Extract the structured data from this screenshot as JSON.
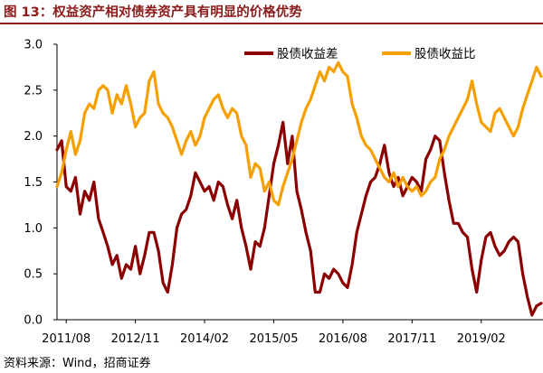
{
  "figure": {
    "title": "图 13：权益资产相对债券资产具有明显的价格优势",
    "source": "资料来源：Wind，招商证券"
  },
  "chart_data": {
    "type": "line",
    "title": "",
    "xlabel": "",
    "ylabel": "",
    "ylim": [
      0.0,
      3.0
    ],
    "yticks": [
      "0.0",
      "0.5",
      "1.0",
      "1.5",
      "2.0",
      "2.5",
      "3.0"
    ],
    "xlim": [
      "2011/06",
      "2020/03"
    ],
    "xticks": [
      "2011/08",
      "2012/11",
      "2014/02",
      "2015/05",
      "2016/08",
      "2017/11",
      "2019/02"
    ],
    "grid": false,
    "legend_position": "top",
    "series": [
      {
        "name": "股债收益差",
        "color": "#8B0000",
        "points": [
          [
            "2011/06",
            1.85
          ],
          [
            "2011/07",
            1.95
          ],
          [
            "2011/08",
            1.45
          ],
          [
            "2011/09",
            1.4
          ],
          [
            "2011/10",
            1.55
          ],
          [
            "2011/11",
            1.15
          ],
          [
            "2011/12",
            1.4
          ],
          [
            "2012/01",
            1.3
          ],
          [
            "2012/02",
            1.5
          ],
          [
            "2012/03",
            1.1
          ],
          [
            "2012/04",
            0.95
          ],
          [
            "2012/05",
            0.8
          ],
          [
            "2012/06",
            0.6
          ],
          [
            "2012/07",
            0.7
          ],
          [
            "2012/08",
            0.45
          ],
          [
            "2012/09",
            0.6
          ],
          [
            "2012/10",
            0.55
          ],
          [
            "2012/11",
            0.8
          ],
          [
            "2012/12",
            0.5
          ],
          [
            "2013/01",
            0.7
          ],
          [
            "2013/02",
            0.95
          ],
          [
            "2013/03",
            0.95
          ],
          [
            "2013/04",
            0.75
          ],
          [
            "2013/05",
            0.4
          ],
          [
            "2013/06",
            0.3
          ],
          [
            "2013/07",
            0.6
          ],
          [
            "2013/08",
            1.0
          ],
          [
            "2013/09",
            1.15
          ],
          [
            "2013/10",
            1.2
          ],
          [
            "2013/11",
            1.35
          ],
          [
            "2013/12",
            1.6
          ],
          [
            "2014/01",
            1.5
          ],
          [
            "2014/02",
            1.4
          ],
          [
            "2014/03",
            1.45
          ],
          [
            "2014/04",
            1.3
          ],
          [
            "2014/05",
            1.5
          ],
          [
            "2014/06",
            1.45
          ],
          [
            "2014/07",
            1.25
          ],
          [
            "2014/08",
            1.1
          ],
          [
            "2014/09",
            1.3
          ],
          [
            "2014/10",
            1.0
          ],
          [
            "2014/11",
            0.8
          ],
          [
            "2014/12",
            0.55
          ],
          [
            "2015/01",
            0.85
          ],
          [
            "2015/02",
            0.8
          ],
          [
            "2015/03",
            1.0
          ],
          [
            "2015/04",
            1.35
          ],
          [
            "2015/05",
            1.7
          ],
          [
            "2015/06",
            1.9
          ],
          [
            "2015/07",
            2.15
          ],
          [
            "2015/08",
            1.7
          ],
          [
            "2015/09",
            2.0
          ],
          [
            "2015/10",
            1.4
          ],
          [
            "2015/11",
            1.2
          ],
          [
            "2015/12",
            0.95
          ],
          [
            "2016/01",
            0.75
          ],
          [
            "2016/02",
            0.3
          ],
          [
            "2016/03",
            0.3
          ],
          [
            "2016/04",
            0.5
          ],
          [
            "2016/05",
            0.45
          ],
          [
            "2016/06",
            0.55
          ],
          [
            "2016/07",
            0.5
          ],
          [
            "2016/08",
            0.4
          ],
          [
            "2016/09",
            0.35
          ],
          [
            "2016/10",
            0.6
          ],
          [
            "2016/11",
            0.95
          ],
          [
            "2016/12",
            1.15
          ],
          [
            "2017/01",
            1.35
          ],
          [
            "2017/02",
            1.5
          ],
          [
            "2017/03",
            1.55
          ],
          [
            "2017/04",
            1.7
          ],
          [
            "2017/05",
            1.9
          ],
          [
            "2017/06",
            1.6
          ],
          [
            "2017/07",
            1.45
          ],
          [
            "2017/08",
            1.55
          ],
          [
            "2017/09",
            1.35
          ],
          [
            "2017/10",
            1.45
          ],
          [
            "2017/11",
            1.55
          ],
          [
            "2017/12",
            1.5
          ],
          [
            "2018/01",
            1.4
          ],
          [
            "2018/02",
            1.75
          ],
          [
            "2018/03",
            1.85
          ],
          [
            "2018/04",
            2.0
          ],
          [
            "2018/05",
            1.95
          ],
          [
            "2018/06",
            1.6
          ],
          [
            "2018/07",
            1.3
          ],
          [
            "2018/08",
            1.05
          ],
          [
            "2018/09",
            1.05
          ],
          [
            "2018/10",
            0.95
          ],
          [
            "2018/11",
            0.9
          ],
          [
            "2018/12",
            0.55
          ],
          [
            "2019/01",
            0.3
          ],
          [
            "2019/02",
            0.65
          ],
          [
            "2019/03",
            0.9
          ],
          [
            "2019/04",
            0.95
          ],
          [
            "2019/05",
            0.8
          ],
          [
            "2019/06",
            0.7
          ],
          [
            "2019/07",
            0.75
          ],
          [
            "2019/08",
            0.85
          ],
          [
            "2019/09",
            0.9
          ],
          [
            "2019/10",
            0.85
          ],
          [
            "2019/11",
            0.5
          ],
          [
            "2019/12",
            0.25
          ],
          [
            "2020/01",
            0.05
          ],
          [
            "2020/02",
            0.15
          ],
          [
            "2020/03",
            0.18
          ]
        ]
      },
      {
        "name": "股债收益比",
        "color": "#F5A000",
        "points": [
          [
            "2011/06",
            1.45
          ],
          [
            "2011/07",
            1.6
          ],
          [
            "2011/08",
            1.85
          ],
          [
            "2011/09",
            2.05
          ],
          [
            "2011/10",
            1.8
          ],
          [
            "2011/11",
            1.95
          ],
          [
            "2011/12",
            2.25
          ],
          [
            "2012/01",
            2.35
          ],
          [
            "2012/02",
            2.3
          ],
          [
            "2012/03",
            2.5
          ],
          [
            "2012/04",
            2.55
          ],
          [
            "2012/05",
            2.5
          ],
          [
            "2012/06",
            2.25
          ],
          [
            "2012/07",
            2.45
          ],
          [
            "2012/08",
            2.35
          ],
          [
            "2012/09",
            2.55
          ],
          [
            "2012/10",
            2.35
          ],
          [
            "2012/11",
            2.1
          ],
          [
            "2012/12",
            2.2
          ],
          [
            "2013/01",
            2.25
          ],
          [
            "2013/02",
            2.6
          ],
          [
            "2013/03",
            2.7
          ],
          [
            "2013/04",
            2.35
          ],
          [
            "2013/05",
            2.25
          ],
          [
            "2013/06",
            2.2
          ],
          [
            "2013/07",
            2.1
          ],
          [
            "2013/08",
            1.95
          ],
          [
            "2013/09",
            1.8
          ],
          [
            "2013/10",
            1.95
          ],
          [
            "2013/11",
            2.05
          ],
          [
            "2013/12",
            1.9
          ],
          [
            "2014/01",
            2.0
          ],
          [
            "2014/02",
            2.2
          ],
          [
            "2014/03",
            2.3
          ],
          [
            "2014/04",
            2.4
          ],
          [
            "2014/05",
            2.45
          ],
          [
            "2014/06",
            2.3
          ],
          [
            "2014/07",
            2.2
          ],
          [
            "2014/08",
            2.3
          ],
          [
            "2014/09",
            2.25
          ],
          [
            "2014/10",
            2.0
          ],
          [
            "2014/11",
            1.9
          ],
          [
            "2014/12",
            1.55
          ],
          [
            "2015/01",
            1.7
          ],
          [
            "2015/02",
            1.65
          ],
          [
            "2015/03",
            1.4
          ],
          [
            "2015/04",
            1.5
          ],
          [
            "2015/05",
            1.3
          ],
          [
            "2015/06",
            1.25
          ],
          [
            "2015/07",
            1.45
          ],
          [
            "2015/08",
            1.6
          ],
          [
            "2015/09",
            1.75
          ],
          [
            "2015/10",
            1.95
          ],
          [
            "2015/11",
            2.15
          ],
          [
            "2015/12",
            2.3
          ],
          [
            "2016/01",
            2.4
          ],
          [
            "2016/02",
            2.55
          ],
          [
            "2016/03",
            2.7
          ],
          [
            "2016/04",
            2.6
          ],
          [
            "2016/05",
            2.75
          ],
          [
            "2016/06",
            2.7
          ],
          [
            "2016/07",
            2.8
          ],
          [
            "2016/08",
            2.7
          ],
          [
            "2016/09",
            2.65
          ],
          [
            "2016/10",
            2.35
          ],
          [
            "2016/11",
            2.2
          ],
          [
            "2016/12",
            2.0
          ],
          [
            "2017/01",
            1.9
          ],
          [
            "2017/02",
            1.85
          ],
          [
            "2017/03",
            1.75
          ],
          [
            "2017/04",
            1.65
          ],
          [
            "2017/05",
            1.55
          ],
          [
            "2017/06",
            1.5
          ],
          [
            "2017/07",
            1.6
          ],
          [
            "2017/08",
            1.45
          ],
          [
            "2017/09",
            1.55
          ],
          [
            "2017/10",
            1.45
          ],
          [
            "2017/11",
            1.4
          ],
          [
            "2017/12",
            1.45
          ],
          [
            "2018/01",
            1.35
          ],
          [
            "2018/02",
            1.4
          ],
          [
            "2018/03",
            1.5
          ],
          [
            "2018/04",
            1.55
          ],
          [
            "2018/05",
            1.75
          ],
          [
            "2018/06",
            1.85
          ],
          [
            "2018/07",
            2.0
          ],
          [
            "2018/08",
            2.1
          ],
          [
            "2018/09",
            2.2
          ],
          [
            "2018/10",
            2.3
          ],
          [
            "2018/11",
            2.4
          ],
          [
            "2018/12",
            2.6
          ],
          [
            "2019/01",
            2.35
          ],
          [
            "2019/02",
            2.15
          ],
          [
            "2019/03",
            2.1
          ],
          [
            "2019/04",
            2.05
          ],
          [
            "2019/05",
            2.25
          ],
          [
            "2019/06",
            2.3
          ],
          [
            "2019/07",
            2.2
          ],
          [
            "2019/08",
            2.1
          ],
          [
            "2019/09",
            2.0
          ],
          [
            "2019/10",
            2.1
          ],
          [
            "2019/11",
            2.3
          ],
          [
            "2019/12",
            2.45
          ],
          [
            "2020/01",
            2.6
          ],
          [
            "2020/02",
            2.75
          ],
          [
            "2020/03",
            2.65
          ]
        ]
      }
    ]
  }
}
